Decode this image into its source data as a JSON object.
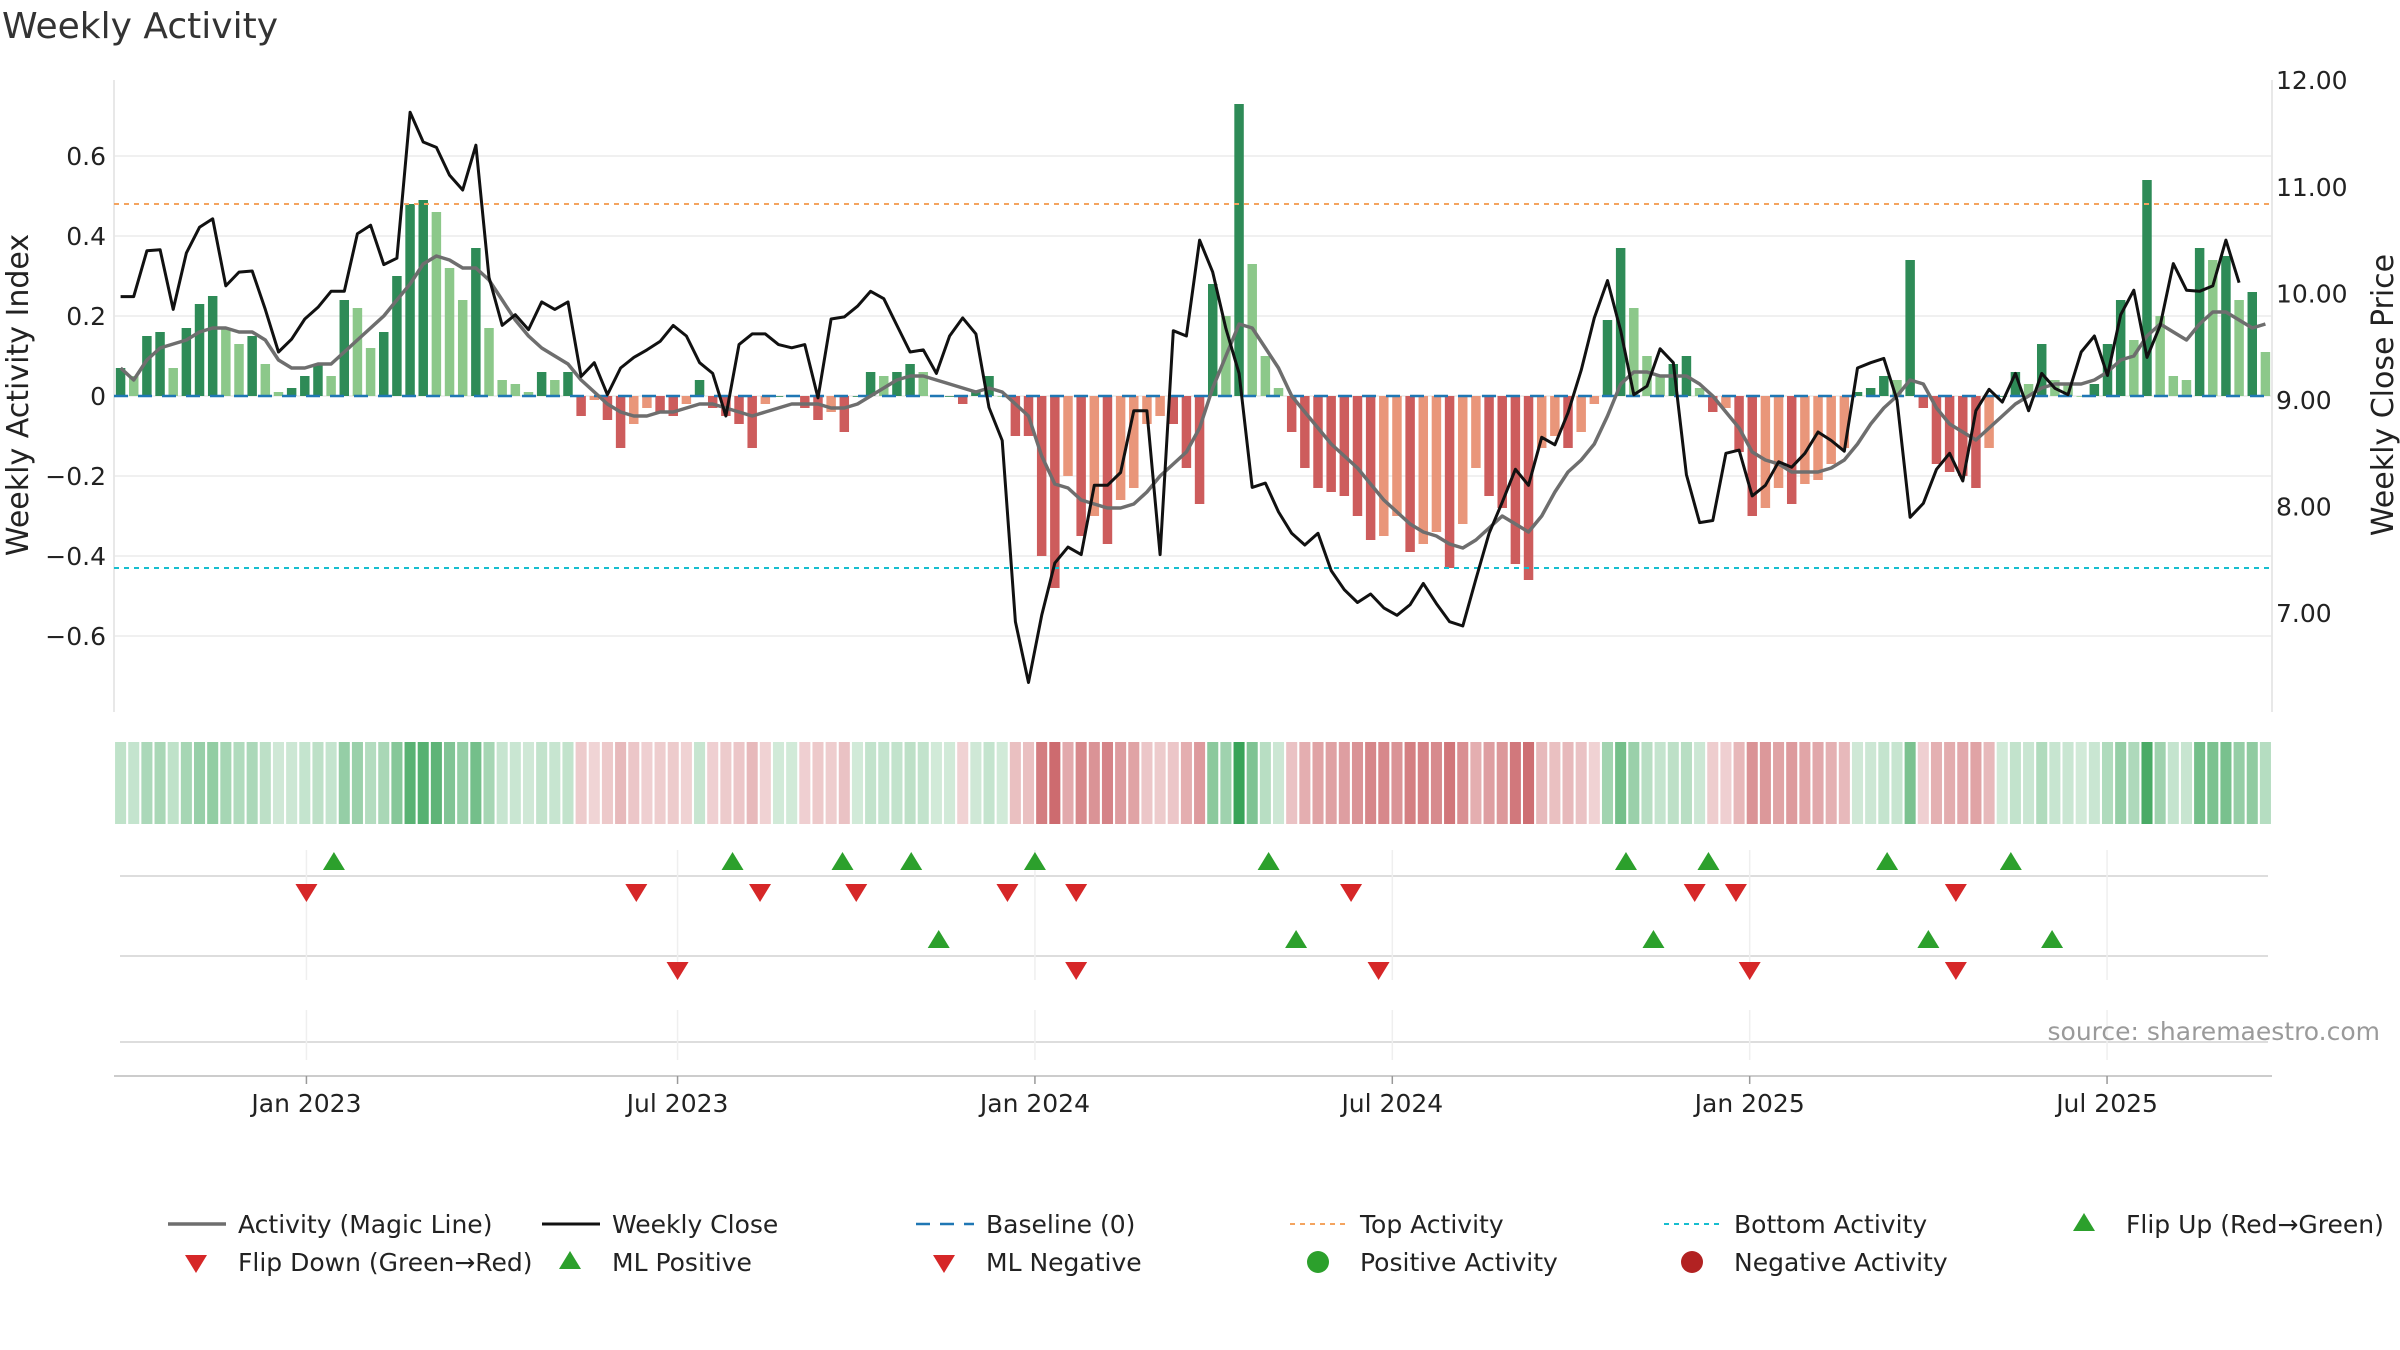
{
  "title": "Weekly Activity",
  "source": "source: sharemaestro.com",
  "colors": {
    "dark_green": "#2e8b57",
    "light_green": "#8cc88a",
    "dark_red": "#cd5c5c",
    "light_red": "#e9967a",
    "magic_line": "#6e6e6e",
    "close_line": "#111111",
    "baseline": "#1f77b4",
    "top": "#f4a460",
    "bottom": "#17becf",
    "flip_up": "#2ca02c",
    "flip_down": "#d62728",
    "grid": "#e6e6e6"
  },
  "chart_data": {
    "type": "bar",
    "title": "Weekly Activity",
    "ylabel_left": "Weekly Activity Index",
    "ylabel_right": "Weekly Close Price",
    "y_left_range": [
      -0.8,
      0.8
    ],
    "y_left_ticks": [
      0.6,
      0.4,
      0.2,
      0,
      -0.2,
      -0.4,
      -0.6
    ],
    "y_left_tick_labels": [
      "0.6",
      "0.4",
      "0.2",
      "0",
      "−0.2",
      "−0.4",
      "−0.6"
    ],
    "y_right_range": [
      6.0,
      12.0
    ],
    "y_right_ticks": [
      12,
      11,
      10,
      9,
      8,
      7
    ],
    "y_right_tick_labels": [
      "12.00",
      "11.00",
      "10.00",
      "9.00",
      "8.00",
      "7.00"
    ],
    "x_ticks": [
      {
        "label": "Jan 2023",
        "week": 33
      },
      {
        "label": "Jul 2023",
        "week": 60
      },
      {
        "label": "Jan 2024",
        "week": 86
      },
      {
        "label": "Jul 2024",
        "week": 112
      },
      {
        "label": "Jan 2025",
        "week": 138
      },
      {
        "label": "Jul 2025",
        "week": 164
      }
    ],
    "week_range": [
      19,
      176
    ],
    "top_activity": 0.48,
    "bottom_activity": -0.43,
    "baseline": 0,
    "activity_index": [
      0.07,
      0.05,
      0.15,
      0.16,
      0.07,
      0.17,
      0.23,
      0.25,
      0.17,
      0.13,
      0.15,
      0.08,
      0.01,
      0.02,
      0.05,
      0.08,
      0.05,
      0.24,
      0.22,
      0.12,
      0.16,
      0.3,
      0.48,
      0.49,
      0.46,
      0.32,
      0.24,
      0.37,
      0.17,
      0.04,
      0.03,
      0.01,
      0.06,
      0.04,
      0.06,
      -0.05,
      -0.01,
      -0.06,
      -0.13,
      -0.07,
      -0.03,
      -0.04,
      -0.05,
      -0.02,
      0.04,
      -0.03,
      -0.05,
      -0.07,
      -0.13,
      -0.02,
      0.0,
      0.0,
      -0.03,
      -0.06,
      -0.04,
      -0.09,
      0.0,
      0.06,
      0.05,
      0.06,
      0.08,
      0.06,
      0.0,
      0.0,
      -0.02,
      0.01,
      0.05,
      0.0,
      -0.1,
      -0.1,
      -0.4,
      -0.48,
      -0.2,
      -0.35,
      -0.3,
      -0.37,
      -0.26,
      -0.23,
      -0.07,
      -0.05,
      -0.07,
      -0.18,
      -0.27,
      0.28,
      0.2,
      0.73,
      0.33,
      0.1,
      0.02,
      -0.09,
      -0.18,
      -0.23,
      -0.24,
      -0.25,
      -0.3,
      -0.36,
      -0.35,
      -0.3,
      -0.39,
      -0.37,
      -0.34,
      -0.43,
      -0.32,
      -0.18,
      -0.25,
      -0.28,
      -0.42,
      -0.46,
      -0.13,
      -0.1,
      -0.13,
      -0.09,
      -0.02,
      0.19,
      0.37,
      0.22,
      0.1,
      0.05,
      0.08,
      0.1,
      0.02,
      -0.04,
      -0.03,
      -0.14,
      -0.3,
      -0.28,
      -0.23,
      -0.27,
      -0.22,
      -0.21,
      -0.17,
      -0.13,
      0.01,
      0.02,
      0.05,
      0.04,
      0.34,
      -0.03,
      -0.17,
      -0.19,
      -0.2,
      -0.23,
      -0.13,
      0.0,
      0.06,
      0.03,
      0.13,
      0.04,
      0.03,
      0.0,
      0.03,
      0.13,
      0.24,
      0.14,
      0.54,
      0.2,
      0.05,
      0.04,
      0.37,
      0.34,
      0.35,
      0.24,
      0.26,
      0.11
    ],
    "activity_magic_line": [
      0.07,
      0.04,
      0.09,
      0.12,
      0.13,
      0.14,
      0.16,
      0.17,
      0.17,
      0.16,
      0.16,
      0.14,
      0.09,
      0.07,
      0.07,
      0.08,
      0.08,
      0.11,
      0.14,
      0.17,
      0.2,
      0.24,
      0.28,
      0.33,
      0.35,
      0.34,
      0.32,
      0.32,
      0.29,
      0.24,
      0.19,
      0.15,
      0.12,
      0.1,
      0.08,
      0.04,
      0.01,
      -0.02,
      -0.04,
      -0.05,
      -0.05,
      -0.04,
      -0.04,
      -0.03,
      -0.02,
      -0.02,
      -0.03,
      -0.04,
      -0.05,
      -0.04,
      -0.03,
      -0.02,
      -0.02,
      -0.02,
      -0.03,
      -0.03,
      -0.02,
      0.0,
      0.02,
      0.04,
      0.05,
      0.05,
      0.04,
      0.03,
      0.02,
      0.01,
      0.02,
      0.01,
      -0.02,
      -0.05,
      -0.15,
      -0.22,
      -0.23,
      -0.26,
      -0.27,
      -0.28,
      -0.28,
      -0.27,
      -0.24,
      -0.2,
      -0.17,
      -0.14,
      -0.08,
      0.02,
      0.1,
      0.18,
      0.17,
      0.12,
      0.07,
      0.0,
      -0.04,
      -0.08,
      -0.12,
      -0.15,
      -0.18,
      -0.22,
      -0.26,
      -0.29,
      -0.32,
      -0.34,
      -0.35,
      -0.37,
      -0.38,
      -0.36,
      -0.33,
      -0.3,
      -0.32,
      -0.34,
      -0.3,
      -0.24,
      -0.19,
      -0.16,
      -0.12,
      -0.05,
      0.03,
      0.06,
      0.06,
      0.05,
      0.05,
      0.05,
      0.03,
      0.0,
      -0.04,
      -0.08,
      -0.14,
      -0.16,
      -0.17,
      -0.19,
      -0.19,
      -0.19,
      -0.18,
      -0.16,
      -0.12,
      -0.07,
      -0.03,
      0.0,
      0.04,
      0.03,
      -0.03,
      -0.07,
      -0.09,
      -0.11,
      -0.08,
      -0.05,
      -0.02,
      0.0,
      0.02,
      0.03,
      0.03,
      0.03,
      0.04,
      0.06,
      0.09,
      0.1,
      0.15,
      0.18,
      0.16,
      0.14,
      0.18,
      0.21,
      0.21,
      0.19,
      0.17,
      0.18
    ],
    "weekly_close": [
      9.97,
      9.97,
      10.4,
      10.41,
      9.85,
      10.38,
      10.62,
      10.7,
      10.07,
      10.2,
      10.21,
      9.85,
      9.45,
      9.57,
      9.76,
      9.87,
      10.02,
      10.02,
      10.56,
      10.64,
      10.27,
      10.33,
      11.7,
      11.42,
      11.37,
      11.11,
      10.97,
      11.39,
      10.15,
      9.7,
      9.8,
      9.66,
      9.92,
      9.85,
      9.92,
      9.22,
      9.35,
      9.05,
      9.3,
      9.4,
      9.47,
      9.55,
      9.7,
      9.6,
      9.35,
      9.25,
      8.85,
      9.52,
      9.62,
      9.62,
      9.52,
      9.49,
      9.52,
      9.02,
      9.76,
      9.78,
      9.88,
      10.02,
      9.95,
      9.7,
      9.45,
      9.47,
      9.25,
      9.6,
      9.77,
      9.62,
      8.93,
      8.62,
      6.92,
      6.35,
      6.98,
      7.47,
      7.62,
      7.55,
      8.2,
      8.2,
      8.32,
      8.9,
      8.9,
      7.55,
      9.65,
      9.6,
      10.5,
      10.2,
      9.67,
      9.25,
      8.18,
      8.22,
      7.95,
      7.75,
      7.64,
      7.75,
      7.4,
      7.22,
      7.1,
      7.18,
      7.05,
      6.98,
      7.08,
      7.28,
      7.09,
      6.92,
      6.88,
      7.32,
      7.75,
      8.04,
      8.35,
      8.2,
      8.65,
      8.58,
      8.88,
      9.28,
      9.77,
      10.12,
      9.65,
      9.05,
      9.13,
      9.48,
      9.35,
      8.3,
      7.85,
      7.87,
      8.5,
      8.53,
      8.1,
      8.2,
      8.42,
      8.37,
      8.5,
      8.7,
      8.62,
      8.52,
      9.3,
      9.35,
      9.39,
      9.0,
      7.9,
      8.03,
      8.35,
      8.5,
      8.24,
      8.9,
      9.1,
      8.98,
      9.25,
      8.9,
      9.25,
      9.11,
      9.05,
      9.45,
      9.6,
      9.23,
      9.8,
      10.03,
      9.4,
      9.7,
      10.28,
      10.03,
      10.02,
      10.07,
      10.5,
      10.1
    ],
    "flip_up_row1": [
      35,
      64,
      72,
      77,
      86,
      103,
      129,
      135,
      148,
      157
    ],
    "flip_down_row1": [
      33,
      57,
      66,
      73,
      84,
      89,
      109,
      134,
      137,
      153
    ],
    "ml_positive_row2": [
      79,
      105,
      131,
      151,
      160
    ],
    "ml_negative_row2": [
      60,
      89,
      111,
      138,
      153
    ],
    "legend": [
      {
        "label": "Activity (Magic Line)",
        "marker": "line-gray"
      },
      {
        "label": "Weekly Close",
        "marker": "line-black"
      },
      {
        "label": "Baseline (0)",
        "marker": "dash-blue"
      },
      {
        "label": "Top Activity",
        "marker": "dot-orange"
      },
      {
        "label": "Bottom Activity",
        "marker": "dot-cyan"
      },
      {
        "label": "Flip Up (Red→Green)",
        "marker": "tri-up-green"
      },
      {
        "label": "Flip Down (Green→Red)",
        "marker": "tri-down-red"
      },
      {
        "label": "ML Positive",
        "marker": "tri-up-green"
      },
      {
        "label": "ML Negative",
        "marker": "tri-down-red"
      },
      {
        "label": "Positive Activity",
        "marker": "circle-green"
      },
      {
        "label": "Negative Activity",
        "marker": "circle-red"
      }
    ]
  }
}
